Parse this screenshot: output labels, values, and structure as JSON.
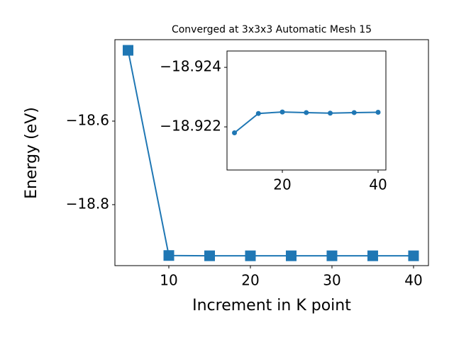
{
  "chart_data": [
    {
      "type": "line",
      "title": "Converged at 3x3x3 Automatic Mesh 15",
      "x_label": "Increment in K point",
      "y_label": "Energy (eV)",
      "x": [
        5,
        10,
        15,
        20,
        25,
        30,
        35,
        40
      ],
      "series": [
        {
          "color": "#1f77b4",
          "marker": "square",
          "values": [
            -18.4305,
            -18.9218,
            -18.92245,
            -18.9225,
            -18.92248,
            -18.92246,
            -18.92248,
            -18.92249
          ]
        }
      ],
      "xlim": [
        3.39,
        41.83
      ],
      "ylim": [
        -18.946,
        -18.405
      ],
      "xticks": [
        10,
        20,
        30,
        40
      ],
      "yticks": [
        {
          "value": -18.6,
          "label": "−18.6"
        },
        {
          "value": -18.8,
          "label": "−18.8"
        }
      ]
    },
    {
      "type": "line",
      "x": [
        10,
        15,
        20,
        25,
        30,
        35,
        40
      ],
      "series": [
        {
          "color": "#1f77b4",
          "marker": "circle",
          "values": [
            -18.9218,
            -18.92245,
            -18.9225,
            -18.92248,
            -18.92246,
            -18.92248,
            -18.92249
          ]
        }
      ],
      "xlim": [
        8.44,
        41.63
      ],
      "ylim": [
        -18.92055,
        -18.92455
      ],
      "xticks": [
        20,
        40
      ],
      "yticks": [
        {
          "value": -18.924,
          "label": "−18.924"
        },
        {
          "value": -18.922,
          "label": "−18.922"
        }
      ]
    }
  ]
}
